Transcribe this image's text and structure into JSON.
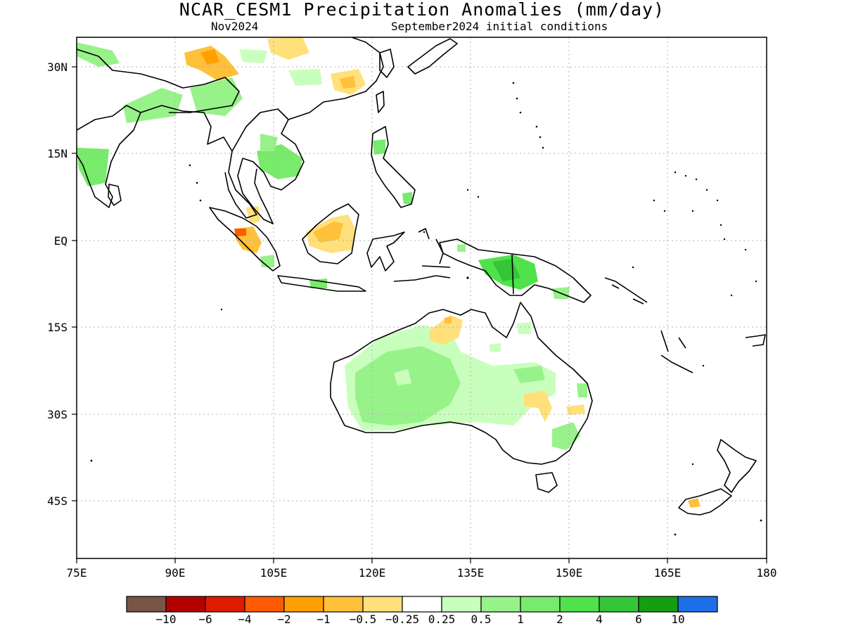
{
  "header": {
    "title": "NCAR_CESM1 Precipitation Anomalies (mm/day)",
    "valid_month": "Nov2024",
    "initial_conditions": "September2024 initial conditions"
  },
  "axes": {
    "x_ticks": [
      "75E",
      "90E",
      "105E",
      "120E",
      "135E",
      "150E",
      "165E",
      "180"
    ],
    "y_ticks": [
      "30N",
      "15N",
      "EQ",
      "15S",
      "30S",
      "45S"
    ],
    "lon_range": [
      75,
      180
    ],
    "lat_range": [
      -55,
      35
    ]
  },
  "colorbar": {
    "colors": [
      "#7a5547",
      "#b50000",
      "#e01b00",
      "#ff5a00",
      "#ffa000",
      "#ffc03a",
      "#ffe07a",
      "#ffffff",
      "#c9ffbd",
      "#98f28a",
      "#78ea6c",
      "#4fe24a",
      "#34c638",
      "#149e12",
      "#1f6fe8"
    ],
    "labels": [
      "−10",
      "−6",
      "−4",
      "−2",
      "−1",
      "−0.5",
      "−0.25",
      "0.25",
      "0.5",
      "1",
      "2",
      "4",
      "6",
      "10"
    ]
  },
  "map_features": {
    "land_outline": "#000000",
    "grid_lines": "dotted-gray"
  }
}
